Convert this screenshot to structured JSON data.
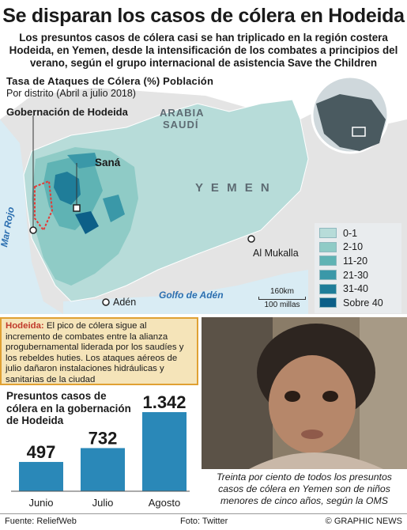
{
  "headline": "Se disparan los casos de cólera en Hodeida",
  "subhead": "Los presuntos casos de cólera casi se han triplicado en la región costera Hodeida, en Yemen, desde la intensificación de los combates a principios del verano, según el grupo internacional de asistencia Save the Children",
  "map": {
    "title": "Tasa de Ataques de Cólera (%) Población",
    "subtitle": "Por distrito (Abril a julio 2018)",
    "governorate_label": "Gobernación de Hodeida",
    "labels": {
      "saudi_line1": "ARABIA",
      "saudi_line2": "SAUDÍ",
      "yemen": "Y E M E N",
      "sana": "Saná",
      "al_mukalla": "Al Mukalla",
      "aden": "Adén",
      "red_sea": "Mar Rojo",
      "gulf": "Golfo de Adén"
    },
    "scale": {
      "km": "160km",
      "miles": "100 millas"
    },
    "legend": [
      {
        "label": "0-1",
        "color": "#b7dcd9"
      },
      {
        "label": "2-10",
        "color": "#8fcbc6"
      },
      {
        "label": "11-20",
        "color": "#5fb3b4"
      },
      {
        "label": "21-30",
        "color": "#3a98a8"
      },
      {
        "label": "31-40",
        "color": "#1f7d99"
      },
      {
        "label": "Sobre 40",
        "color": "#0c5f88"
      }
    ]
  },
  "note": {
    "lead": "Hodeida:",
    "text": " El pico de cólera sigue al incremento de combates entre la alianza progubernamental liderada por los saudíes y los rebeldes huties. Los ataques aéreos de julio dañaron instalaciones hidráulicas y sanitarias de la ciudad"
  },
  "chart_data": {
    "type": "bar",
    "title": "Presuntos casos de cólera en la gobernación de Hodeida",
    "categories": [
      "Junio",
      "Julio",
      "Agosto"
    ],
    "values": [
      497,
      732,
      1342
    ],
    "value_labels": [
      "497",
      "732",
      "1.342"
    ],
    "bar_color": "#2a88b8"
  },
  "photo_caption": "Treinta por ciento de todos los presuntos casos de cólera en Yemen son de niños menores de cinco años, según la OMS",
  "footer": {
    "source": "Fuente: ReliefWeb",
    "photo": "Foto: Twitter",
    "credit": "© GRAPHIC NEWS"
  }
}
